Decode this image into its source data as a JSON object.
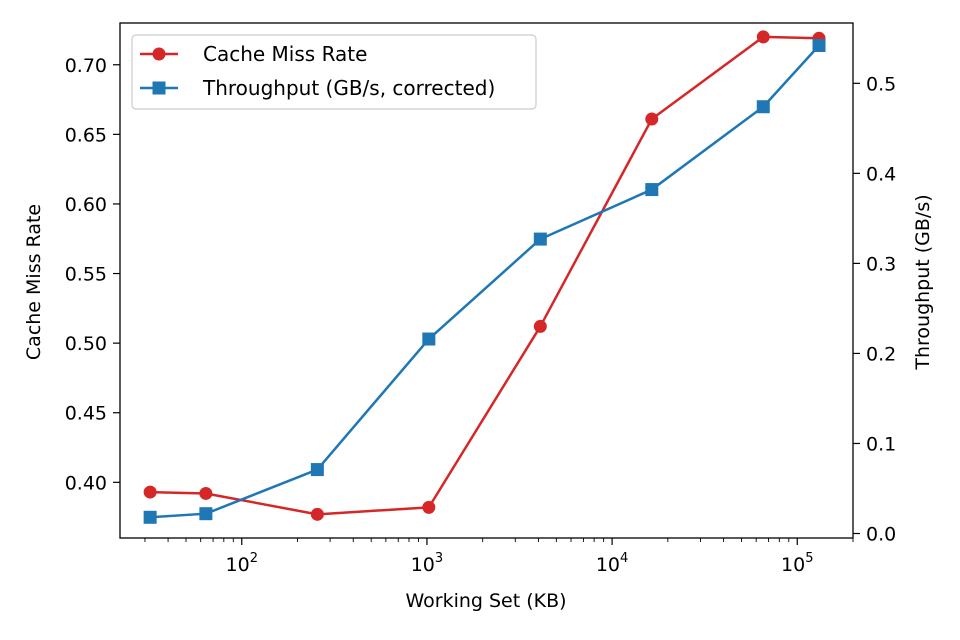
{
  "chart_data": {
    "type": "line",
    "xlabel": "Working Set (KB)",
    "ylabel_left": "Cache Miss Rate",
    "ylabel_right": "Throughput (GB/s)",
    "x_scale": "log",
    "xlim": [
      22,
      200000
    ],
    "ylim_left": [
      0.36,
      0.73
    ],
    "ylim_right": [
      -0.005,
      0.567
    ],
    "x": [
      32,
      64,
      256,
      1024,
      4096,
      16384,
      65536,
      131072
    ],
    "xticks": [
      {
        "value": 100,
        "base": "10",
        "exp": "2"
      },
      {
        "value": 1000,
        "base": "10",
        "exp": "3"
      },
      {
        "value": 10000,
        "base": "10",
        "exp": "4"
      },
      {
        "value": 100000,
        "base": "10",
        "exp": "5"
      }
    ],
    "yticks_left": [
      "0.40",
      "0.45",
      "0.50",
      "0.55",
      "0.60",
      "0.65",
      "0.70"
    ],
    "yticks_right": [
      "0.0",
      "0.1",
      "0.2",
      "0.3",
      "0.4",
      "0.5"
    ],
    "series": [
      {
        "name": "Cache Miss Rate",
        "axis": "left",
        "color": "#d62728",
        "marker": "circle",
        "values": [
          0.393,
          0.392,
          0.377,
          0.382,
          0.512,
          0.661,
          0.72,
          0.719
        ]
      },
      {
        "name": "Throughput (GB/s, corrected)",
        "axis": "right",
        "color": "#1f77b4",
        "marker": "square",
        "values": [
          0.018,
          0.022,
          0.071,
          0.216,
          0.327,
          0.382,
          0.474,
          0.542
        ]
      }
    ],
    "legend_position": "upper-left",
    "grid": false
  }
}
